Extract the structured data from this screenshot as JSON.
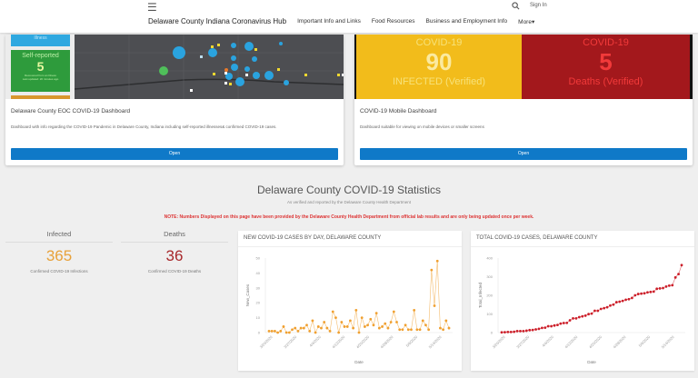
{
  "header": {
    "menu_icon": "hamburger-icon",
    "search_icon": "search-icon",
    "sign_in": "Sign In",
    "site_title": "Delaware County Indiana Coronavirus Hub",
    "nav": [
      "Important Info and Links",
      "Food Resources",
      "Business and Employment Info",
      "More▾"
    ]
  },
  "cards": [
    {
      "title": "Delaware County EOC COVID-19 Dashboard",
      "description": "Dashboard with info regarding the COVID-19 Pandemic in Delaware County, Indiana including self-reported illnesses& confirmed COVID-19 cases.",
      "button": "Open",
      "thumb": {
        "top_label": "Illness",
        "panel_label": "Self-reported",
        "panel_value": "5",
        "panel_sub": "Recovered from an Illness",
        "panel_updated": "Last updated: 20 minutes ago"
      }
    },
    {
      "title": "COVID-19 Mobile Dashboard",
      "description": "Dashboard suitable for viewing on mobile devices or smaller screens",
      "button": "Open",
      "thumb": {
        "left": {
          "label": "COVID-19",
          "value": "90",
          "sub": "INFECTED (Verified)",
          "bg": "#f2bc1b",
          "fg": "#f7e27a"
        },
        "right": {
          "label": "COVID-19",
          "value": "5",
          "sub": "Deaths (Verified)",
          "bg": "#a3181c",
          "fg": "#f23a3a"
        }
      }
    }
  ],
  "stats": {
    "title": "Delaware County COVID-19 Statistics",
    "subtitle": "As verified and reported by the Delaware County Health Department",
    "note": "NOTE: Numbers Displayed on this page have been provided by the Delaware County Health Department from official lab results and are only being updated once per week.",
    "infected": {
      "label": "Infected",
      "value": "365",
      "caption": "Confirmed COVID-19 Infections",
      "color": "#e8a13a"
    },
    "deaths": {
      "label": "Deaths",
      "value": "36",
      "caption": "Confirmed COVID-19 Deaths",
      "color": "#a8282b"
    }
  },
  "chart_data": [
    {
      "type": "line",
      "title": "NEW COVID-19 CASES BY DAY, DELAWARE COUNTY",
      "xlabel": "Date",
      "ylabel": "New_Cases",
      "ylim": [
        0,
        50
      ],
      "yticks": [
        0,
        10,
        20,
        30,
        40,
        50
      ],
      "xticks": [
        "3/20/2020",
        "3/27/2020",
        "4/4/2020",
        "4/12/2020",
        "4/20/2020",
        "4/28/2020",
        "5/6/2020",
        "5/14/2020"
      ],
      "color": "#f0a030",
      "values": [
        1,
        1,
        1,
        0,
        1,
        4,
        0,
        0,
        2,
        3,
        1,
        3,
        3,
        5,
        1,
        8,
        0,
        4,
        3,
        7,
        3,
        1,
        14,
        10,
        0,
        7,
        4,
        4,
        8,
        3,
        15,
        0,
        10,
        4,
        5,
        9,
        5,
        13,
        3,
        4,
        6,
        3,
        7,
        14,
        7,
        2,
        2,
        5,
        2,
        2,
        15,
        2,
        2,
        8,
        5,
        2,
        42,
        18,
        48,
        3,
        2,
        8,
        3
      ]
    },
    {
      "type": "line",
      "title": "TOTAL COVID-19 CASES, DELAWARE COUNTY",
      "xlabel": "Date",
      "ylabel": "Total_Infected",
      "ylim": [
        0,
        400
      ],
      "yticks": [
        0,
        100,
        200,
        300,
        400
      ],
      "xticks": [
        "3/20/2020",
        "3/27/2020",
        "4/4/2020",
        "4/12/2020",
        "4/20/2020",
        "4/28/2020",
        "5/6/2020",
        "5/14/2020"
      ],
      "color": "#cc1f2a",
      "values": [
        1,
        2,
        3,
        3,
        4,
        8,
        8,
        8,
        10,
        13,
        14,
        17,
        20,
        25,
        26,
        34,
        34,
        38,
        41,
        48,
        51,
        52,
        66,
        76,
        76,
        83,
        87,
        91,
        99,
        102,
        117,
        117,
        127,
        131,
        136,
        145,
        150,
        163,
        166,
        170,
        176,
        179,
        186,
        200,
        207,
        209,
        211,
        216,
        218,
        220,
        235,
        237,
        239,
        247,
        252,
        254,
        296,
        314,
        362
      ]
    }
  ]
}
